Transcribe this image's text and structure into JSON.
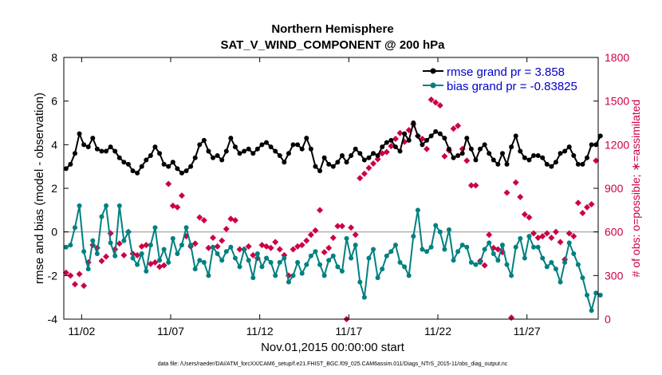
{
  "chart_data": {
    "type": "line",
    "title": "Northern Hemisphere",
    "subtitle": "SAT_V_WIND_COMPONENT @ 200 hPa",
    "xlabel": "Nov.01,2015 00:00:00 start",
    "ylabel": "rmse and bias (model - observation)",
    "y2label": "# of obs: o=possible; ∗=assimilated",
    "footnote": "data file: /Users/raeder/DAI/ATM_forcXX/CAM6_setup/f.e21.FHIST_BGC.f09_025.CAM6assim.011/Diags_NTrS_2015-11/obs_diag_output.nc",
    "xlim": [
      0,
      120
    ],
    "ylim": [
      -4,
      8
    ],
    "y2lim": [
      0,
      1800
    ],
    "x_tick_labels": [
      "11/02",
      "11/07",
      "11/12",
      "11/17",
      "11/22",
      "11/27"
    ],
    "x_tick_positions": [
      4,
      24,
      44,
      64,
      84,
      104
    ],
    "y_ticks": [
      "-4",
      "-2",
      "0",
      "2",
      "4",
      "6",
      "8"
    ],
    "y2_ticks": [
      "0",
      "300",
      "600",
      "900",
      "1200",
      "1500",
      "1800"
    ],
    "legend": [
      "rmse grand pr = 3.858",
      "bias grand pr = -0.83825"
    ],
    "colors": {
      "rmse": "#000000",
      "bias": "#008080",
      "obs": "#cc0044",
      "zero_line": "#b0b0b0"
    },
    "series": [
      {
        "name": "rmse",
        "values": [
          2.9,
          3.1,
          3.6,
          4.5,
          4.0,
          3.9,
          4.3,
          3.8,
          3.7,
          3.7,
          3.9,
          3.7,
          3.4,
          3.2,
          3.1,
          2.8,
          2.7,
          3.0,
          3.3,
          3.5,
          3.9,
          3.6,
          3.1,
          3.0,
          3.2,
          2.9,
          2.7,
          2.8,
          3.0,
          3.4,
          4.0,
          4.2,
          3.7,
          3.4,
          3.5,
          3.3,
          3.7,
          4.3,
          3.9,
          3.6,
          3.7,
          3.8,
          3.6,
          3.8,
          4.0,
          4.1,
          3.9,
          3.7,
          3.5,
          3.2,
          3.6,
          4.0,
          4.0,
          3.8,
          4.3,
          3.8,
          3.0,
          2.8,
          3.4,
          3.1,
          3.0,
          3.2,
          3.5,
          3.2,
          3.5,
          3.8,
          3.6,
          3.3,
          3.4,
          3.6,
          3.5,
          3.9,
          4.1,
          4.2,
          3.9,
          3.7,
          4.5,
          4.2,
          5.0,
          4.4,
          4.0,
          4.2,
          4.4,
          4.6,
          4.5,
          4.3,
          3.8,
          3.4,
          3.5,
          3.6,
          4.3,
          3.8,
          3.3,
          3.8,
          4.0,
          3.6,
          3.3,
          3.1,
          3.6,
          3.1,
          3.9,
          4.4,
          3.7,
          3.4,
          3.3,
          3.5,
          3.5,
          3.4,
          3.1,
          3.0,
          3.2,
          3.6,
          3.7,
          3.9,
          3.5,
          3.1,
          3.1,
          3.4,
          4.0,
          4.0,
          4.4
        ],
        "marker": "circle"
      },
      {
        "name": "bias",
        "values": [
          -0.7,
          -0.6,
          0.2,
          1.2,
          -0.9,
          -1.7,
          -0.4,
          -1.0,
          0.7,
          1.2,
          -0.5,
          -1.1,
          1.2,
          -0.4,
          0.0,
          -1.2,
          -1.5,
          -1.0,
          -1.8,
          -0.6,
          0.2,
          -1.3,
          -0.8,
          -1.4,
          -0.3,
          -1.0,
          -0.6,
          0.2,
          -0.6,
          -1.7,
          -1.3,
          -1.4,
          -2.0,
          -0.7,
          -1.0,
          -1.3,
          -0.9,
          -0.7,
          -1.2,
          -1.6,
          -0.8,
          -1.3,
          -2.1,
          -1.0,
          -1.6,
          -1.2,
          -1.4,
          -2.0,
          -1.4,
          -1.2,
          -2.3,
          -2.0,
          -1.4,
          -1.9,
          -1.5,
          -1.1,
          -0.9,
          -1.5,
          -2.0,
          -1.3,
          -1.1,
          -1.6,
          -1.8,
          -0.3,
          -1.2,
          -0.6,
          -2.3,
          -3.0,
          -1.2,
          -0.8,
          -2.1,
          -1.7,
          -1.1,
          -0.9,
          -0.6,
          -1.4,
          -1.6,
          -2.0,
          -0.2,
          1.0,
          -0.8,
          -0.9,
          -0.7,
          0.3,
          0.0,
          -0.8,
          0.1,
          -1.3,
          -0.9,
          -0.6,
          -0.7,
          -1.4,
          -1.5,
          -1.4,
          -0.8,
          -0.5,
          -1.0,
          -1.3,
          -0.6,
          -1.5,
          -2.0,
          -0.7,
          -0.3,
          -1.2,
          -0.2,
          -0.7,
          -0.7,
          -1.2,
          -1.6,
          -1.4,
          -1.7,
          -2.3,
          -1.4,
          -0.5,
          -1.0,
          -1.5,
          -2.1,
          -2.9,
          -3.6,
          -2.8,
          -2.9
        ],
        "marker": "circle"
      }
    ],
    "obs_points": [
      [
        0.5,
        320
      ],
      [
        1.5,
        300
      ],
      [
        2.5,
        240
      ],
      [
        3.5,
        310
      ],
      [
        4.5,
        230
      ],
      [
        5.5,
        390
      ],
      [
        6.5,
        510
      ],
      [
        7.5,
        490
      ],
      [
        8.5,
        400
      ],
      [
        9.5,
        430
      ],
      [
        10.5,
        590
      ],
      [
        11.5,
        480
      ],
      [
        12.5,
        520
      ],
      [
        13.5,
        440
      ],
      [
        14.5,
        600
      ],
      [
        15.5,
        450
      ],
      [
        16.5,
        440
      ],
      [
        17.5,
        500
      ],
      [
        18.5,
        510
      ],
      [
        19.5,
        380
      ],
      [
        20.5,
        390
      ],
      [
        21.5,
        360
      ],
      [
        22.5,
        370
      ],
      [
        23.5,
        930
      ],
      [
        24.5,
        780
      ],
      [
        25.5,
        770
      ],
      [
        26.5,
        850
      ],
      [
        27.5,
        570
      ],
      [
        28.5,
        500
      ],
      [
        29.5,
        520
      ],
      [
        30.5,
        700
      ],
      [
        31.5,
        680
      ],
      [
        32.5,
        490
      ],
      [
        33.5,
        560
      ],
      [
        34.5,
        500
      ],
      [
        35.5,
        540
      ],
      [
        36.5,
        620
      ],
      [
        37.5,
        690
      ],
      [
        38.5,
        680
      ],
      [
        39.5,
        480
      ],
      [
        40.5,
        480
      ],
      [
        41.5,
        500
      ],
      [
        42.5,
        440
      ],
      [
        43.5,
        420
      ],
      [
        44.5,
        510
      ],
      [
        45.5,
        500
      ],
      [
        46.5,
        490
      ],
      [
        47.5,
        530
      ],
      [
        48.5,
        480
      ],
      [
        49.5,
        440
      ],
      [
        50.5,
        300
      ],
      [
        51.5,
        480
      ],
      [
        52.5,
        500
      ],
      [
        53.5,
        510
      ],
      [
        54.5,
        540
      ],
      [
        55.5,
        580
      ],
      [
        56.5,
        610
      ],
      [
        57.5,
        750
      ],
      [
        58.5,
        460
      ],
      [
        59.5,
        490
      ],
      [
        60.5,
        560
      ],
      [
        61.5,
        640
      ],
      [
        62.5,
        640
      ],
      [
        63.5,
        0
      ],
      [
        64.5,
        630
      ],
      [
        65.5,
        580
      ],
      [
        66.5,
        970
      ],
      [
        67.5,
        1000
      ],
      [
        68.5,
        1040
      ],
      [
        69.5,
        1070
      ],
      [
        70.5,
        1100
      ],
      [
        71.5,
        1140
      ],
      [
        72.5,
        1150
      ],
      [
        73.5,
        1190
      ],
      [
        74.5,
        1240
      ],
      [
        75.5,
        1280
      ],
      [
        76.5,
        1220
      ],
      [
        77.5,
        1300
      ],
      [
        78.5,
        1340
      ],
      [
        79.5,
        1260
      ],
      [
        80.5,
        1240
      ],
      [
        81.5,
        1170
      ],
      [
        82.5,
        1510
      ],
      [
        83.5,
        1490
      ],
      [
        84.5,
        1470
      ],
      [
        85.5,
        1120
      ],
      [
        86.5,
        1160
      ],
      [
        87.5,
        1310
      ],
      [
        88.5,
        1330
      ],
      [
        89.5,
        1170
      ],
      [
        90.5,
        1090
      ],
      [
        91.5,
        920
      ],
      [
        92.5,
        920
      ],
      [
        93.5,
        400
      ],
      [
        94.5,
        370
      ],
      [
        95.5,
        580
      ],
      [
        96.5,
        490
      ],
      [
        97.5,
        480
      ],
      [
        98.5,
        460
      ],
      [
        99.5,
        870
      ],
      [
        100.5,
        10
      ],
      [
        101.5,
        940
      ],
      [
        102.5,
        840
      ],
      [
        103.5,
        720
      ],
      [
        104.5,
        700
      ],
      [
        105.5,
        590
      ],
      [
        106.5,
        560
      ],
      [
        107.5,
        570
      ],
      [
        108.5,
        590
      ],
      [
        109.5,
        560
      ],
      [
        110.5,
        600
      ],
      [
        111.5,
        530
      ],
      [
        112.5,
        410
      ],
      [
        113.5,
        590
      ],
      [
        114.5,
        570
      ],
      [
        115.5,
        800
      ],
      [
        116.5,
        730
      ],
      [
        117.5,
        770
      ],
      [
        118.5,
        790
      ],
      [
        119.5,
        1090
      ]
    ]
  }
}
